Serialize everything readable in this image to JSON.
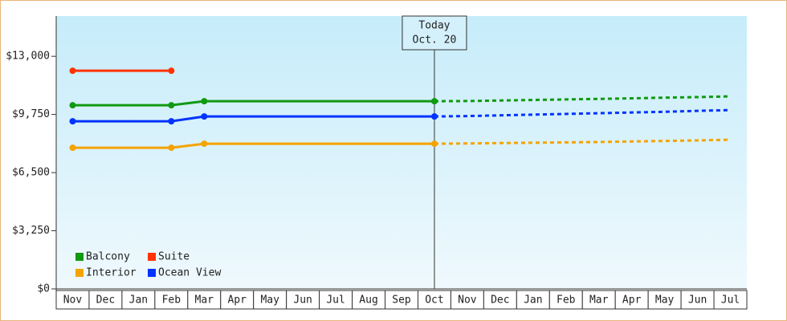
{
  "chart_data": {
    "type": "line",
    "categories": [
      "Nov",
      "Dec",
      "Jan",
      "Feb",
      "Mar",
      "Apr",
      "May",
      "Jun",
      "Jul",
      "Aug",
      "Sep",
      "Oct",
      "Nov",
      "Dec",
      "Jan",
      "Feb",
      "Mar",
      "Apr",
      "May",
      "Jun",
      "Jul"
    ],
    "series": [
      {
        "name": "Balcony",
        "color": "#119911",
        "values": [
          10265,
          10265,
          10265,
          10265,
          10490,
          10490,
          10490,
          10490,
          10490,
          10490,
          10490,
          10490,
          null,
          null,
          null,
          null,
          null,
          null,
          null,
          null,
          null
        ],
        "forecast": [
          null,
          null,
          null,
          null,
          null,
          null,
          null,
          null,
          null,
          null,
          null,
          10490,
          10500,
          10530,
          10560,
          10590,
          10620,
          10650,
          10690,
          10720,
          10760
        ]
      },
      {
        "name": "Suite",
        "color": "#ff3300",
        "values": [
          12193,
          12193,
          12193,
          12193,
          null,
          null,
          null,
          null,
          null,
          null,
          null,
          null,
          null,
          null,
          null,
          null,
          null,
          null,
          null,
          null,
          null
        ]
      },
      {
        "name": "Interior",
        "color": "#f5a300",
        "values": [
          7890,
          7890,
          7890,
          7890,
          8114,
          8114,
          8114,
          8114,
          8114,
          8114,
          8114,
          8114,
          null,
          null,
          null,
          null,
          null,
          null,
          null,
          null,
          null
        ],
        "forecast": [
          null,
          null,
          null,
          null,
          null,
          null,
          null,
          null,
          null,
          null,
          null,
          8114,
          8130,
          8150,
          8170,
          8190,
          8210,
          8240,
          8270,
          8300,
          8338
        ]
      },
      {
        "name": "Ocean View",
        "color": "#0033ff",
        "values": [
          9369,
          9369,
          9369,
          9369,
          9638,
          9638,
          9638,
          9638,
          9638,
          9638,
          9638,
          9638,
          null,
          null,
          null,
          null,
          null,
          null,
          null,
          null,
          null
        ],
        "forecast": [
          null,
          null,
          null,
          null,
          null,
          null,
          null,
          null,
          null,
          null,
          null,
          9638,
          9660,
          9700,
          9740,
          9780,
          9820,
          9860,
          9900,
          9950,
          9997
        ]
      }
    ],
    "annotation": [
      "Today",
      "Oct. 20"
    ],
    "ylim": [
      0,
      15250
    ],
    "yticks": [
      {
        "value": 0,
        "label": "$0"
      },
      {
        "value": 3250,
        "label": "$3,250"
      },
      {
        "value": 6500,
        "label": "$6,500"
      },
      {
        "value": 9750,
        "label": "$9,750"
      },
      {
        "value": 13000,
        "label": "$13,000"
      }
    ],
    "legend": "bottom-left"
  }
}
